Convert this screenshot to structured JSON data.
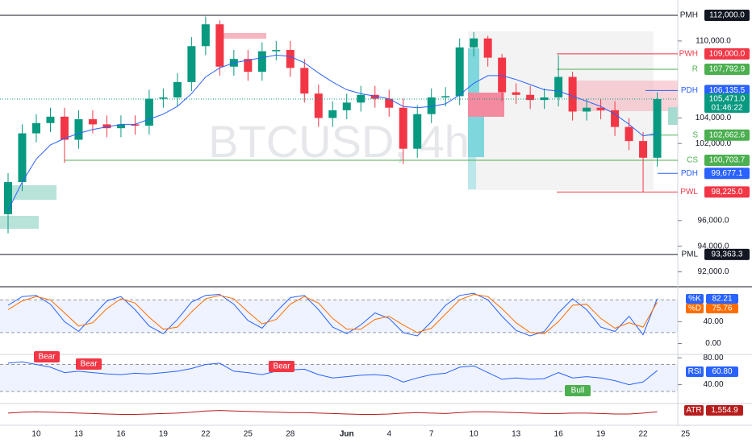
{
  "chart_data": {
    "type": "candlestick",
    "watermark": "BTCUSD, 4h",
    "categories": [
      null,
      null,
      "10",
      null,
      null,
      "13",
      null,
      null,
      "16",
      null,
      null,
      "19",
      null,
      null,
      "22",
      null,
      null,
      "25",
      null,
      null,
      "28",
      null,
      null,
      null,
      "Jun",
      null,
      null,
      "4",
      null,
      null,
      "7",
      null,
      null,
      "10",
      null,
      null,
      "13",
      null,
      null,
      "16",
      null,
      null,
      "19",
      null,
      null,
      "22",
      null,
      null,
      "25"
    ],
    "up_color": "#089981",
    "down_color": "#f23645",
    "open": [
      96500,
      99000,
      102800,
      103600,
      104100,
      102300,
      103900,
      103500,
      103200,
      103500,
      103400,
      105500,
      105600,
      106800,
      109600,
      111300,
      108000,
      108600,
      107600,
      109200,
      109300,
      107900,
      105900,
      104000,
      104600,
      105200,
      105800,
      105500,
      104800,
      101600,
      104300,
      105600,
      105700,
      109500,
      110200,
      108700,
      106000,
      105800,
      105400,
      105600,
      107200,
      104500,
      104800,
      104600,
      103300,
      102200,
      100900,
      null,
      null
    ],
    "high": [
      99700,
      103500,
      104300,
      104800,
      104800,
      104600,
      104600,
      104200,
      104200,
      104200,
      106200,
      106300,
      107500,
      110300,
      111900,
      111600,
      109300,
      109300,
      109900,
      110000,
      110000,
      108600,
      106600,
      105300,
      105900,
      106500,
      106500,
      106200,
      105500,
      105000,
      106300,
      106400,
      110200,
      110700,
      110400,
      109000,
      106700,
      106500,
      106300,
      108900,
      107600,
      105500,
      105500,
      105300,
      104000,
      102900,
      106000,
      null,
      null
    ],
    "low": [
      95000,
      98300,
      102100,
      102900,
      100500,
      101600,
      102800,
      102500,
      102500,
      102700,
      102700,
      104800,
      104900,
      106100,
      108900,
      107300,
      107300,
      106900,
      106900,
      108500,
      107200,
      105200,
      103300,
      103300,
      103900,
      104500,
      104800,
      104100,
      100400,
      100900,
      103600,
      104900,
      105000,
      108800,
      108000,
      105300,
      105100,
      104700,
      104700,
      104900,
      103800,
      103800,
      103900,
      102600,
      101500,
      98200,
      100200,
      null,
      null
    ],
    "close": [
      99000,
      102800,
      103600,
      104100,
      102300,
      103900,
      103500,
      103200,
      103500,
      103400,
      105500,
      105600,
      106800,
      109600,
      111300,
      108000,
      108600,
      107600,
      109200,
      109300,
      107900,
      105900,
      104000,
      104600,
      105200,
      105800,
      105500,
      104800,
      101600,
      104300,
      105600,
      105700,
      109500,
      110200,
      108700,
      106000,
      105800,
      105400,
      105600,
      107200,
      104500,
      104800,
      104600,
      103300,
      102200,
      100900,
      105471,
      null,
      null
    ],
    "current_label": "105,471.0",
    "countdown": "01:46:22",
    "ma": {
      "color": "#2962ff",
      "values": [
        96800,
        99000,
        100800,
        101900,
        102400,
        102800,
        103100,
        103300,
        103500,
        103500,
        103900,
        104300,
        104900,
        105900,
        107200,
        107900,
        108300,
        108500,
        108700,
        108900,
        108800,
        108300,
        107500,
        106800,
        106200,
        105900,
        105700,
        105500,
        104900,
        104800,
        104900,
        105100,
        105800,
        106700,
        107300,
        107300,
        107000,
        106600,
        106200,
        106100,
        105700,
        105300,
        104900,
        104300,
        103500,
        102600,
        102800,
        null,
        null
      ]
    },
    "ylim": [
      90841,
      113196
    ],
    "yticks": [
      {
        "value": 110000,
        "label": "110,000.0"
      },
      {
        "value": 104000,
        "label": "104,000.0"
      },
      {
        "value": 102000,
        "label": "102,000.0"
      },
      {
        "value": 96000,
        "label": "96,000.0"
      },
      {
        "value": 94000,
        "label": "94,000.0"
      },
      {
        "value": 92000,
        "label": "92,000.0"
      }
    ],
    "grid": false,
    "levels": [
      {
        "label": "PMH",
        "value": 112000,
        "value_label": "112,000.0",
        "color": "#131722"
      },
      {
        "label": "PWH",
        "value": 109000,
        "value_label": "109,000.0",
        "color": "#f23645"
      },
      {
        "label": "R",
        "value": 107792.9,
        "value_label": "107,792.9",
        "color": "#4caf50"
      },
      {
        "label": "PDH",
        "value": 106135.5,
        "value_label": "106,135.5",
        "color": "#2962ff"
      },
      {
        "label": "S",
        "value": 102662.6,
        "value_label": "102,662.6",
        "color": "#4caf50"
      },
      {
        "label": "CS",
        "value": 100703.7,
        "value_label": "100,703.7",
        "color": "#4caf50"
      },
      {
        "label": "PDH",
        "value": 99677.1,
        "value_label": "99,677.1",
        "color": "#2962ff"
      },
      {
        "label": "PWL",
        "value": 98225,
        "value_label": "98,225.0",
        "color": "#f23645"
      },
      {
        "label": "PML",
        "value": 93363.3,
        "value_label": "93,363.3",
        "color": "#131722"
      }
    ],
    "stoch": {
      "ylim": [
        -20,
        104
      ],
      "yticks": [
        {
          "value": 40,
          "label": "40.00"
        },
        {
          "value": 0,
          "label": "0.00"
        }
      ],
      "bands": [
        20,
        80
      ],
      "series": [
        {
          "name": "%K",
          "color": "#2962ff",
          "values": [
            70,
            86,
            88,
            72,
            40,
            22,
            50,
            78,
            86,
            62,
            32,
            18,
            44,
            76,
            88,
            90,
            72,
            42,
            28,
            58,
            84,
            88,
            62,
            30,
            18,
            34,
            56,
            46,
            20,
            14,
            40,
            70,
            88,
            92,
            80,
            50,
            24,
            14,
            22,
            56,
            82,
            62,
            30,
            22,
            50,
            16,
            82.21,
            null,
            null
          ]
        },
        {
          "name": "%D",
          "color": "#ff6d00",
          "values": [
            62,
            78,
            86,
            80,
            56,
            32,
            38,
            64,
            82,
            74,
            48,
            26,
            30,
            58,
            82,
            88,
            82,
            58,
            36,
            44,
            72,
            86,
            74,
            46,
            26,
            26,
            44,
            50,
            34,
            20,
            28,
            54,
            80,
            90,
            86,
            64,
            38,
            20,
            18,
            40,
            70,
            72,
            46,
            28,
            38,
            30,
            75.76,
            null,
            null
          ]
        }
      ]
    },
    "rsi": {
      "name": "RSI",
      "color": "#2962ff",
      "ylim": [
        12,
        85
      ],
      "yticks": [
        {
          "value": 80,
          "label": "80.00"
        },
        {
          "value": 40,
          "label": "40.00"
        }
      ],
      "bands": [
        30,
        70
      ],
      "values": [
        72,
        74,
        70,
        66,
        58,
        60,
        58,
        56,
        55,
        57,
        56,
        58,
        60,
        64,
        70,
        72,
        60,
        58,
        55,
        60,
        62,
        63,
        55,
        50,
        52,
        54,
        55,
        53,
        44,
        50,
        55,
        57,
        66,
        68,
        58,
        48,
        50,
        48,
        49,
        58,
        50,
        52,
        50,
        46,
        40,
        44,
        60.8,
        null,
        null
      ],
      "current_label": "60.80"
    },
    "atr": {
      "name": "ATR",
      "color": "#b71c1c",
      "ylim": [
        0,
        2500
      ],
      "values": [
        1400,
        1500,
        1550,
        1500,
        1450,
        1400,
        1350,
        1300,
        1250,
        1250,
        1300,
        1350,
        1400,
        1500,
        1650,
        1700,
        1650,
        1600,
        1550,
        1500,
        1450,
        1450,
        1400,
        1350,
        1300,
        1250,
        1250,
        1300,
        1400,
        1450,
        1400,
        1350,
        1450,
        1550,
        1550,
        1500,
        1450,
        1400,
        1350,
        1350,
        1400,
        1400,
        1350,
        1300,
        1300,
        1400,
        1554.9,
        null,
        null
      ],
      "current_label": "1,554.9"
    },
    "annotations": [
      "Bear",
      "Bear",
      "Bear",
      "Bull"
    ]
  }
}
